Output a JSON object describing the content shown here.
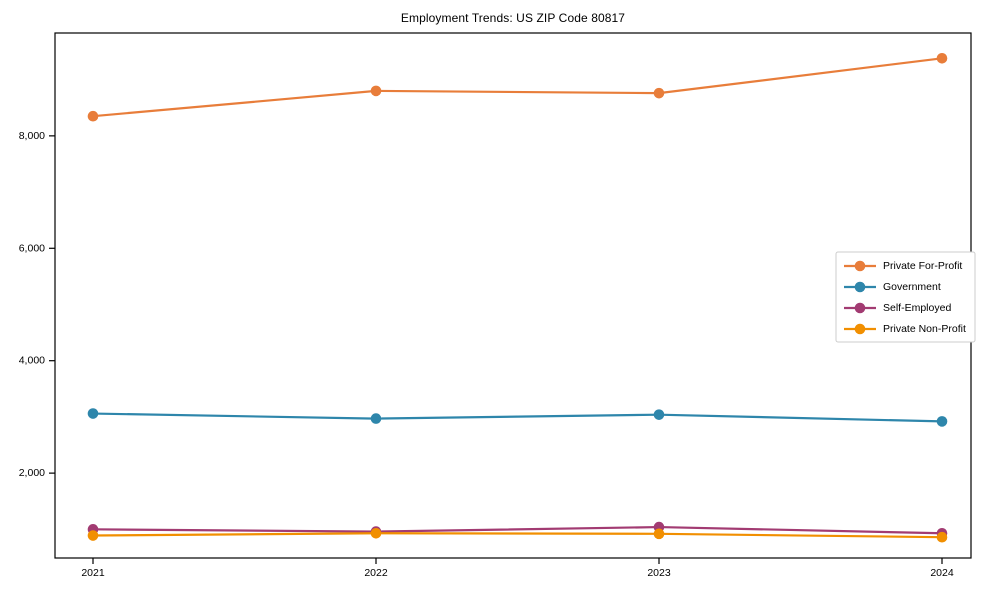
{
  "figure": {
    "background": "#ffffff",
    "axis_color": "#000000",
    "text_color": "#000000",
    "legend_border_color": "#cccccc"
  },
  "chart_data": {
    "type": "line",
    "title": "Employment Trends: US ZIP Code 80817",
    "xlabel": "",
    "ylabel": "",
    "x": [
      2021,
      2022,
      2023,
      2024
    ],
    "xtick_labels": [
      "2021",
      "2022",
      "2023",
      "2024"
    ],
    "yticks": [
      2000,
      4000,
      6000,
      8000
    ],
    "ytick_labels": [
      "2,000",
      "4,000",
      "6,000",
      "8,000"
    ],
    "ylim": [
      490,
      9830
    ],
    "grid": false,
    "legend_position": "center-right",
    "marker": "circle",
    "series": [
      {
        "name": "Private For-Profit",
        "color": "#E87D3A",
        "values": [
          8350,
          8800,
          8760,
          9380
        ]
      },
      {
        "name": "Government",
        "color": "#2E86AB",
        "values": [
          3060,
          2970,
          3040,
          2920
        ]
      },
      {
        "name": "Self-Employed",
        "color": "#A23B72",
        "values": [
          1000,
          960,
          1040,
          930
        ]
      },
      {
        "name": "Private Non-Profit",
        "color": "#F18F01",
        "values": [
          890,
          930,
          920,
          860
        ]
      }
    ]
  }
}
